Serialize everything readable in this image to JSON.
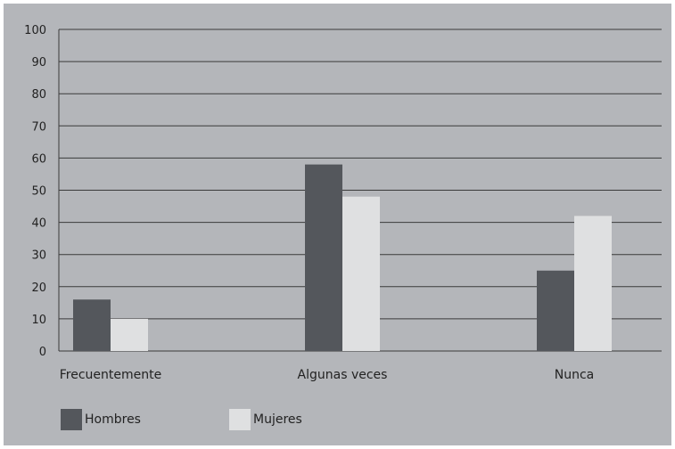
{
  "chart_data": {
    "type": "bar",
    "categories": [
      "Frecuentemente",
      "Algunas veces",
      "Nunca"
    ],
    "series": [
      {
        "name": "Hombres",
        "values": [
          16,
          58,
          25
        ],
        "color": "#54575c"
      },
      {
        "name": "Mujeres",
        "values": [
          10,
          48,
          42
        ],
        "color": "#dfe0e1"
      }
    ],
    "ylim": [
      0,
      100
    ],
    "yticks": [
      "0",
      "10",
      "20",
      "30",
      "40",
      "50",
      "60",
      "70",
      "80",
      "90",
      "100"
    ],
    "grid": true,
    "legend_position": "bottom-left",
    "title": "",
    "xlabel": "",
    "ylabel": ""
  },
  "colors": {
    "panel_background": "#b4b6ba",
    "grid_line": "#3a3a3a",
    "text": "#222222"
  }
}
